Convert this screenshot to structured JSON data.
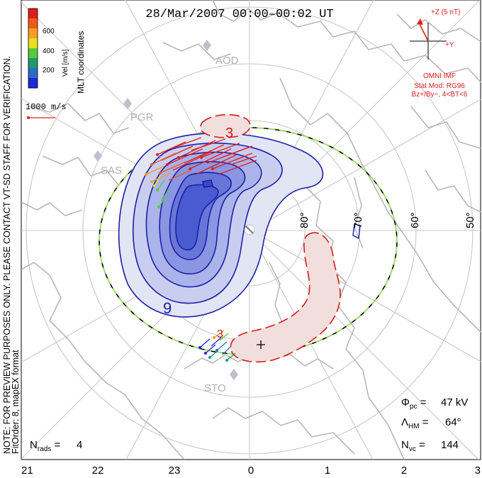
{
  "title": "28/Mar/2007 00:00–00:02 UT",
  "side_note": "NOTE: FOR PREVIEW PURPOSES ONLY. PLEASE CONTACT VT-SD STAFF FOR VERIFICATION.",
  "fit_info": "FitOrder: 8, mapEX format",
  "colorbar": {
    "label": "Vel [m/s]",
    "ticks": [
      "600",
      "400",
      "200"
    ],
    "colors": [
      "#e0201a",
      "#f05a1a",
      "#f5a020",
      "#e8e020",
      "#5ac83c",
      "#1e9a6e",
      "#2c6ac8",
      "#1e28d6"
    ]
  },
  "coord_label": "MLT coordinates",
  "ref_vector": {
    "label": "1000 m/s"
  },
  "imf": {
    "z_label": "+Z (5 nT)",
    "y_label": "+Y",
    "source": "OMNI IMF",
    "model": "Stat Mod: RG96",
    "condition": "Bz+/By−, 4<BT<6"
  },
  "stations": [
    "AOD",
    "PGR",
    "SAS",
    "STO"
  ],
  "lat_labels": [
    "80°",
    "70°",
    "60°",
    "50°"
  ],
  "contour_labels": [
    "3",
    "9",
    "3"
  ],
  "mlt_ticks": [
    "21",
    "22",
    "23",
    "0",
    "1",
    "2",
    "3"
  ],
  "stats": {
    "phi_pc": "47 kV",
    "lambda_hm": "64°",
    "n_vc": "144",
    "n_rads": "4"
  },
  "colors": {
    "negative_cell": "#3a50d8",
    "positive_cell": "#e09a96",
    "negative_contour": "#1e1ea8",
    "positive_contour": "#d41a1a",
    "hmb_boundary_a": "#000000",
    "hmb_boundary_b": "#8ed84a",
    "coastline": "#b8b8b8",
    "grid": "#c4c4c4"
  }
}
